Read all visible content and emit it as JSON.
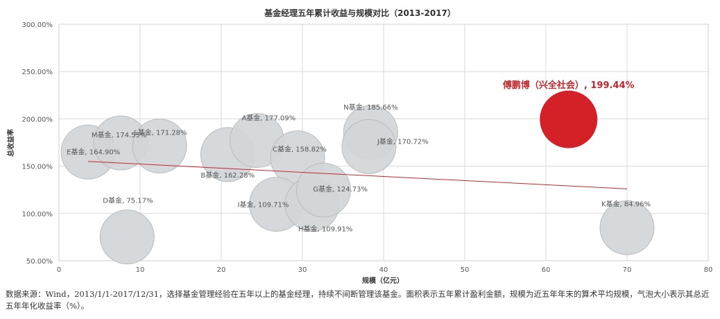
{
  "chart_data": {
    "type": "bubble",
    "title": "基金经理五年累计收益与规模对比（2013-2017）",
    "xlabel": "规模（亿元）",
    "ylabel": "总收益率",
    "xlim": [
      0,
      80
    ],
    "ylim": [
      50,
      300
    ],
    "x_ticks": [
      0,
      10,
      20,
      30,
      40,
      50,
      60,
      70,
      80
    ],
    "y_ticks": [
      "50.00%",
      "100.00%",
      "150.00%",
      "200.00%",
      "250.00%",
      "300.00%"
    ],
    "y_tick_values": [
      50,
      100,
      150,
      200,
      250,
      300
    ],
    "grid": true,
    "bubbles": [
      {
        "label": "E基金, 164.90%",
        "x": 3.6,
        "y": 164.9
      },
      {
        "label": "M基金, 174.55%",
        "x": 7.6,
        "y": 174.55
      },
      {
        "label": "L基金, 171.28%",
        "x": 12.4,
        "y": 171.28
      },
      {
        "label": "D基金, 75.17%",
        "x": 8.4,
        "y": 75.17
      },
      {
        "label": "B基金, 162.28%",
        "x": 20.8,
        "y": 162.28
      },
      {
        "label": "A基金, 177.09%",
        "x": 24.4,
        "y": 177.09
      },
      {
        "label": "C基金, 158.82%",
        "x": 29.4,
        "y": 158.82
      },
      {
        "label": "I基金, 109.71%",
        "x": 26.8,
        "y": 109.71
      },
      {
        "label": "H基金, 109.91%",
        "x": 31.2,
        "y": 109.91
      },
      {
        "label": "G基金, 124.73%",
        "x": 32.6,
        "y": 124.73
      },
      {
        "label": "N基金, 185.66%",
        "x": 38.4,
        "y": 185.66
      },
      {
        "label": "J基金, 170.72%",
        "x": 38.2,
        "y": 170.72
      },
      {
        "label": "K基金, 84.96%",
        "x": 70.0,
        "y": 84.96
      },
      {
        "label": "傅鹏博（兴全社会）, 199.44%",
        "x": 62.8,
        "y": 199.44,
        "highlight": true
      }
    ],
    "trendline": {
      "x": [
        3.6,
        70.0
      ],
      "y": [
        155.0,
        126.0
      ]
    },
    "colors": {
      "bubble": "#d3d6d8",
      "bubble_border": "#b9bcbe",
      "highlight": "#d42127",
      "trend": "#c0282e",
      "grid": "#d9d9d9"
    }
  },
  "source_note": "数据来源：Wind，2013/1/1-2017/12/31，选择基金管理经验在五年以上的基金经理，持续不间断管理该基金。面积表示五年累计盈利金额，规模为近五年年末的算术平均规模，气泡大小表示其总近五年年化收益率（%）。"
}
